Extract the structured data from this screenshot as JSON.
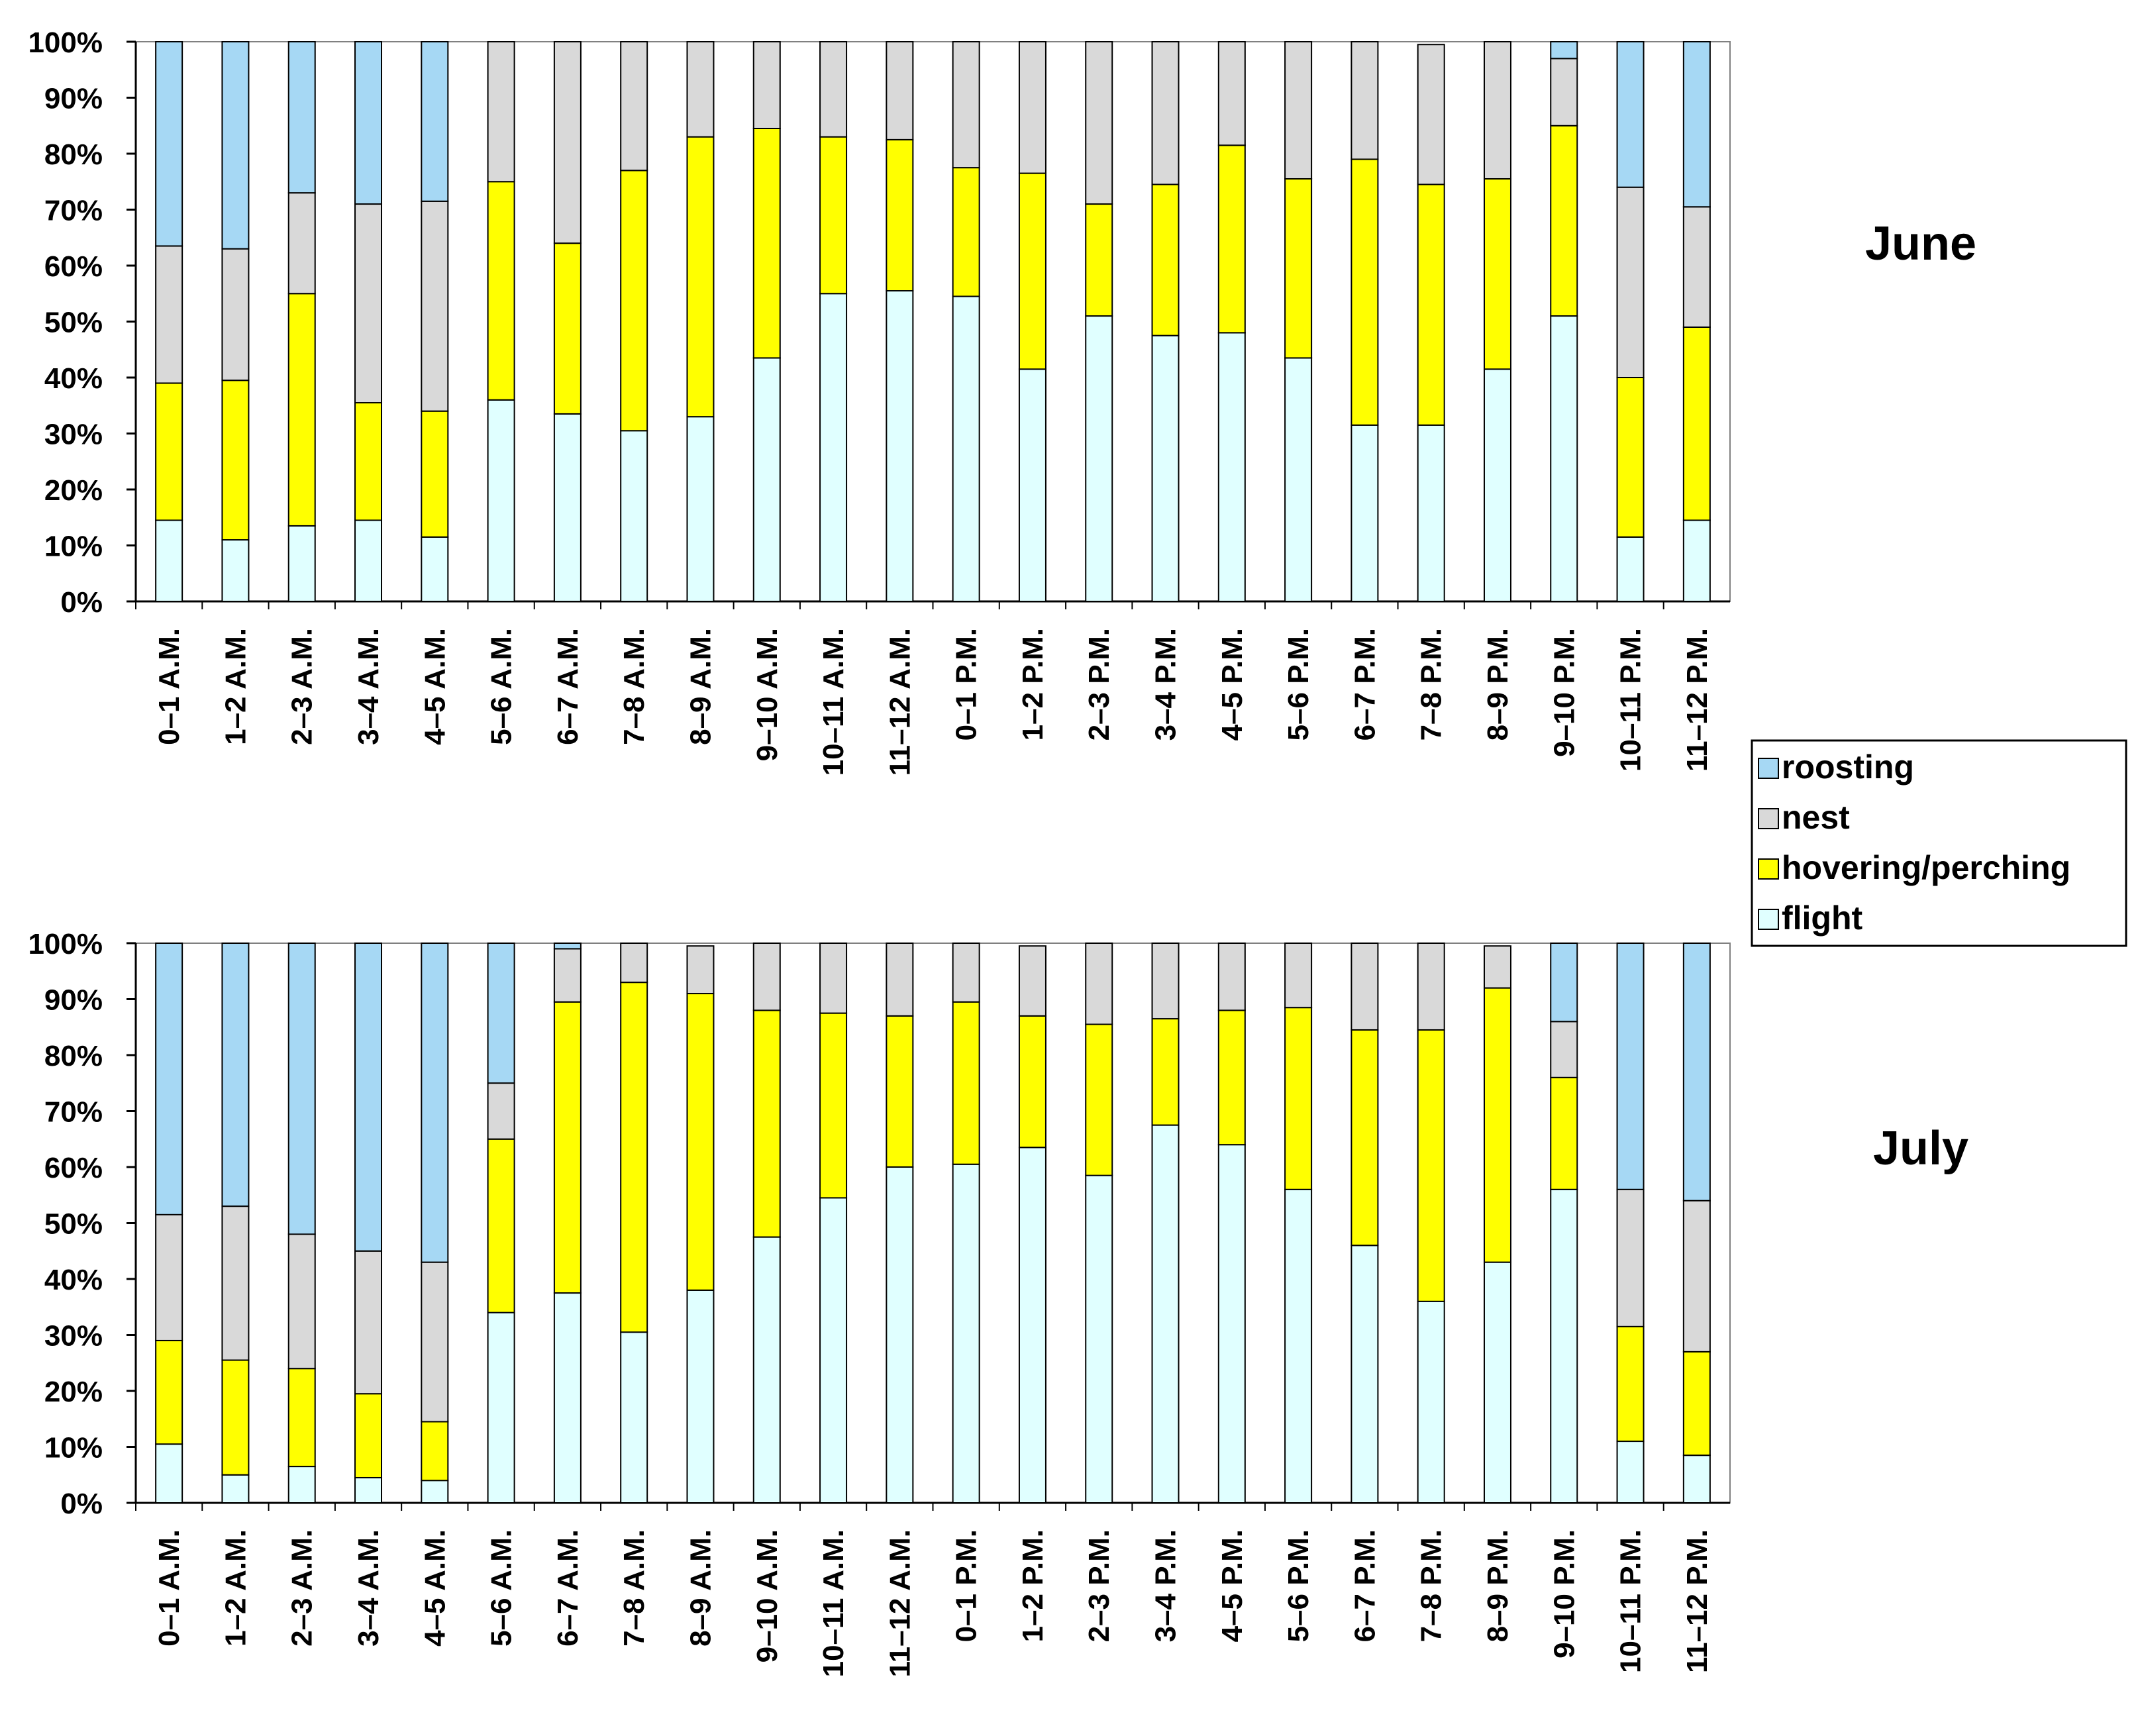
{
  "legend": {
    "items": [
      {
        "key": "roosting",
        "label": "roosting"
      },
      {
        "key": "nest",
        "label": "nest"
      },
      {
        "key": "hovering",
        "label": "hovering/perching"
      },
      {
        "key": "flight",
        "label": "flight"
      }
    ]
  },
  "colors": {
    "flight": "#e0ffff",
    "hovering": "#ffff00",
    "nest": "#d9d9d9",
    "roosting": "#a6d8f4",
    "stroke": "#000000",
    "grid": "#808080"
  },
  "chart_data": [
    {
      "type": "bar",
      "stacked": true,
      "title": "June",
      "ylim": [
        0,
        100
      ],
      "yticks": [
        "0%",
        "10%",
        "20%",
        "30%",
        "40%",
        "50%",
        "60%",
        "70%",
        "80%",
        "90%",
        "100%"
      ],
      "categories": [
        "0–1 A.M.",
        "1–2 A.M.",
        "2–3 A.M.",
        "3–4 A.M.",
        "4–5 A.M.",
        "5–6 A.M.",
        "6–7 A.M.",
        "7–8 A.M.",
        "8–9 A.M.",
        "9–10 A.M.",
        "10–11 A.M.",
        "11–12 A.M.",
        "0–1 P.M.",
        "1–2 P.M.",
        "2–3 P.M.",
        "3–4 P.M.",
        "4–5 P.M.",
        "5–6 P.M.",
        "6–7 P.M.",
        "7–8 P.M.",
        "8–9 P.M.",
        "9–10 P.M.",
        "10–11 P.M.",
        "11–12 P.M."
      ],
      "series": [
        {
          "name": "flight",
          "values": [
            14.5,
            11,
            13.5,
            14.5,
            11.5,
            36,
            33.5,
            30.5,
            33,
            43.5,
            55,
            55.5,
            54.5,
            41.5,
            51,
            47.5,
            48,
            43.5,
            31.5,
            31.5,
            41.5,
            51,
            11.5,
            14.5
          ]
        },
        {
          "name": "hovering/perching",
          "values": [
            24.5,
            28.5,
            41.5,
            21,
            22.5,
            39,
            30.5,
            46.5,
            50,
            41,
            28,
            27,
            23,
            35,
            20,
            27,
            33.5,
            32,
            47.5,
            43,
            34,
            34,
            28.5,
            34.5
          ]
        },
        {
          "name": "nest",
          "values": [
            24.5,
            23.5,
            18,
            35.5,
            37.5,
            25,
            36,
            23,
            17,
            15.5,
            17,
            17.5,
            22.5,
            23.5,
            29,
            25.5,
            18.5,
            24.5,
            21,
            25,
            24.5,
            12,
            34,
            21.5
          ]
        },
        {
          "name": "roosting",
          "values": [
            36.5,
            37,
            27,
            29,
            28.5,
            0,
            0,
            0,
            0,
            0,
            0,
            0,
            0,
            0,
            0,
            0,
            0,
            0,
            0,
            0,
            0,
            3,
            26,
            29.5
          ]
        }
      ]
    },
    {
      "type": "bar",
      "stacked": true,
      "title": "July",
      "ylim": [
        0,
        100
      ],
      "yticks": [
        "0%",
        "10%",
        "20%",
        "30%",
        "40%",
        "50%",
        "60%",
        "70%",
        "80%",
        "90%",
        "100%"
      ],
      "categories": [
        "0–1 A.M.",
        "1–2 A.M.",
        "2–3 A.M.",
        "3–4 A.M.",
        "4–5 A.M.",
        "5–6 A.M.",
        "6–7 A.M.",
        "7–8 A.M.",
        "8–9 A.M.",
        "9–10 A.M.",
        "10–11 A.M.",
        "11–12 A.M.",
        "0–1 P.M.",
        "1–2 P.M.",
        "2–3 P.M.",
        "3–4 P.M.",
        "4–5 P.M.",
        "5–6 P.M.",
        "6–7 P.M.",
        "7–8 P.M.",
        "8–9 P.M.",
        "9–10 P.M.",
        "10–11 P.M.",
        "11–12 P.M."
      ],
      "series": [
        {
          "name": "flight",
          "values": [
            10.5,
            5,
            6.5,
            4.5,
            4,
            34,
            37.5,
            30.5,
            38,
            47.5,
            54.5,
            60,
            60.5,
            63.5,
            58.5,
            67.5,
            64,
            56,
            46,
            36,
            43,
            56,
            11,
            8.5
          ]
        },
        {
          "name": "hovering/perching",
          "values": [
            18.5,
            20.5,
            17.5,
            15,
            10.5,
            31,
            52,
            62.5,
            53,
            40.5,
            33,
            27,
            29,
            23.5,
            27,
            19,
            24,
            32.5,
            38.5,
            48.5,
            49,
            20,
            20.5,
            18.5
          ]
        },
        {
          "name": "nest",
          "values": [
            22.5,
            27.5,
            24,
            25.5,
            28.5,
            10,
            9.5,
            7,
            8.5,
            12,
            12.5,
            13,
            10.5,
            12.5,
            14.5,
            13.5,
            12,
            11.5,
            15.5,
            15.5,
            7.5,
            10,
            24.5,
            27
          ]
        },
        {
          "name": "roosting",
          "values": [
            48.5,
            47,
            52,
            55,
            57,
            25,
            1,
            0,
            0,
            0,
            0,
            0,
            0,
            0,
            0,
            0,
            0,
            0,
            0,
            0,
            0,
            14,
            44,
            46
          ]
        }
      ]
    }
  ]
}
